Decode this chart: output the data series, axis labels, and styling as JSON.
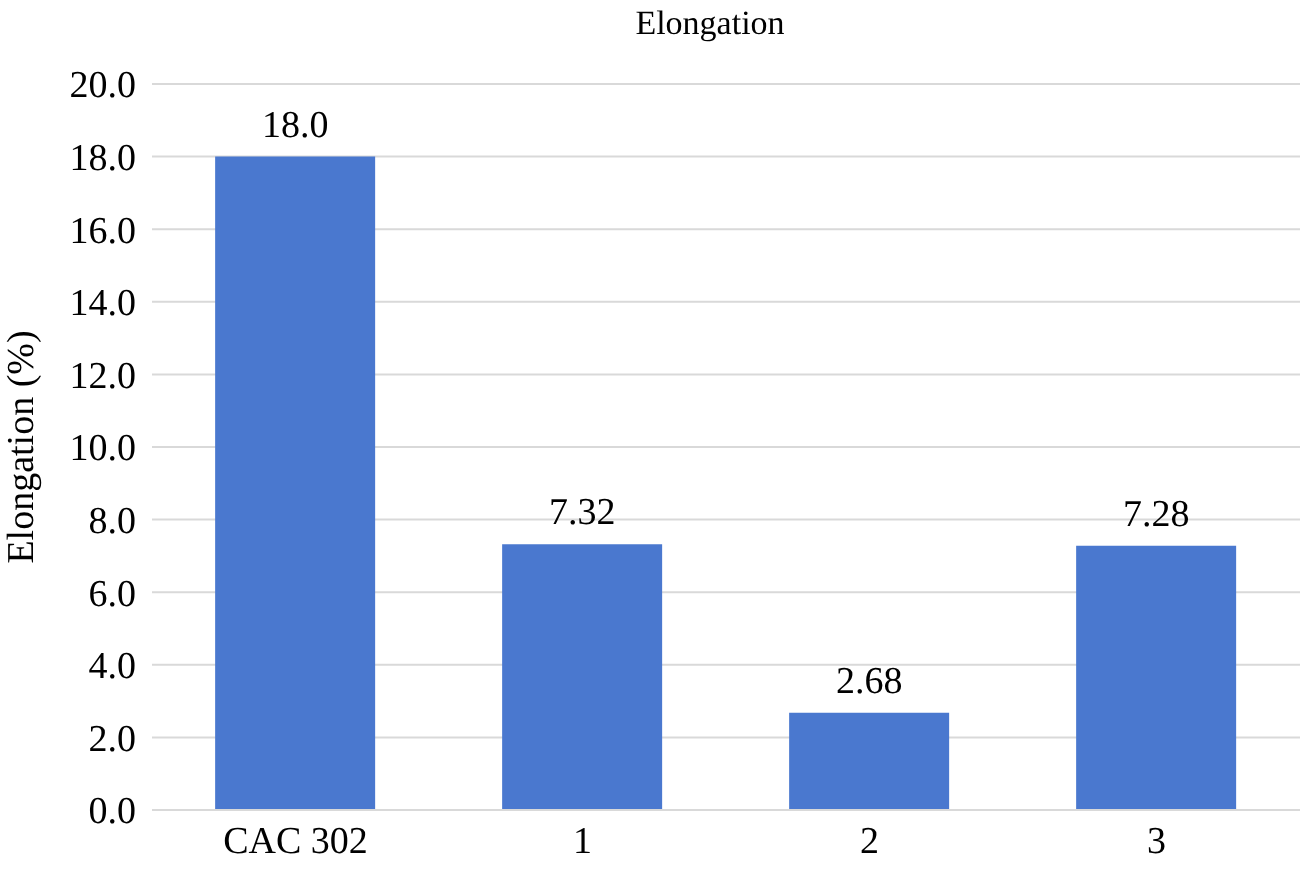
{
  "chart_data": {
    "type": "bar",
    "title": "Elongation",
    "ylabel": "Elongation (%)",
    "categories": [
      "CAC 302",
      "1",
      "2",
      "3"
    ],
    "values": [
      18.0,
      7.32,
      2.68,
      7.28
    ],
    "value_labels": [
      "18.0",
      "7.32",
      "2.68",
      "7.28"
    ],
    "color": "#4a78cf",
    "ylim": [
      0,
      20
    ],
    "yticks": [
      {
        "value": 0,
        "label": "0.0"
      },
      {
        "value": 2,
        "label": "2.0"
      },
      {
        "value": 4,
        "label": "4.0"
      },
      {
        "value": 6,
        "label": "6.0"
      },
      {
        "value": 8,
        "label": "8.0"
      },
      {
        "value": 10,
        "label": "10.0"
      },
      {
        "value": 12,
        "label": "12.0"
      },
      {
        "value": 14,
        "label": "14.0"
      },
      {
        "value": 16,
        "label": "16.0"
      },
      {
        "value": 18,
        "label": "18.0"
      },
      {
        "value": 20,
        "label": "20.0"
      }
    ],
    "grid": "y",
    "legend": false
  }
}
